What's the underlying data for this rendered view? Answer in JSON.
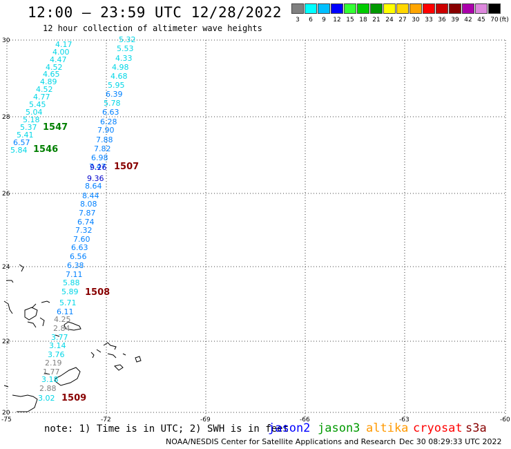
{
  "header": {
    "title": "12:00 – 23:59 UTC 12/28/2022",
    "subtitle": "12 hour collection of altimeter wave heights"
  },
  "legend": {
    "unit": "(ft)",
    "items": [
      {
        "label": "3",
        "color": "#808080"
      },
      {
        "label": "6",
        "color": "#00ffff"
      },
      {
        "label": "9",
        "color": "#00bfff"
      },
      {
        "label": "12",
        "color": "#0000ff"
      },
      {
        "label": "15",
        "color": "#33ff33"
      },
      {
        "label": "18",
        "color": "#00cc00"
      },
      {
        "label": "21",
        "color": "#009900"
      },
      {
        "label": "24",
        "color": "#ffff00"
      },
      {
        "label": "27",
        "color": "#ffd700"
      },
      {
        "label": "30",
        "color": "#ffa500"
      },
      {
        "label": "33",
        "color": "#ff0000"
      },
      {
        "label": "36",
        "color": "#cc0000"
      },
      {
        "label": "39",
        "color": "#880000"
      },
      {
        "label": "42",
        "color": "#aa00aa"
      },
      {
        "label": "45",
        "color": "#dd88dd"
      },
      {
        "label": "70",
        "color": "#000000"
      }
    ]
  },
  "map": {
    "lon_ticks": [
      "-75",
      "-72",
      "-69",
      "-66",
      "-63",
      "-60"
    ],
    "lat_ticks": [
      "30",
      "28",
      "26",
      "24",
      "22",
      "20"
    ],
    "colors": {
      "cyan": "#00d6e6",
      "blue": "#0080ff",
      "navy": "#0000cc",
      "gray": "#808080",
      "green": "#007f00",
      "darkred": "#880000"
    },
    "track_left": [
      {
        "text": "4.17",
        "c": "cyan"
      },
      {
        "text": "4.00",
        "c": "cyan"
      },
      {
        "text": "4.47",
        "c": "cyan"
      },
      {
        "text": "4.52",
        "c": "cyan"
      },
      {
        "text": "4.65",
        "c": "cyan"
      },
      {
        "text": "4.89",
        "c": "cyan"
      },
      {
        "text": "4.52",
        "c": "cyan"
      },
      {
        "text": "4.77",
        "c": "cyan"
      },
      {
        "text": "5.45",
        "c": "cyan"
      },
      {
        "text": "5.04",
        "c": "cyan"
      },
      {
        "text": "5.18",
        "c": "cyan"
      },
      {
        "text": "5.37",
        "c": "cyan"
      },
      {
        "text": "5.41",
        "c": "cyan"
      },
      {
        "text": "6.57",
        "c": "blue"
      },
      {
        "text": "5.84",
        "c": "cyan"
      }
    ],
    "track_right": [
      {
        "text": "5.32",
        "c": "cyan"
      },
      {
        "text": "5.53",
        "c": "cyan"
      },
      {
        "text": "4.33",
        "c": "cyan"
      },
      {
        "text": "4.98",
        "c": "cyan"
      },
      {
        "text": "4.68",
        "c": "cyan"
      },
      {
        "text": "5.95",
        "c": "cyan"
      },
      {
        "text": "6.39",
        "c": "blue"
      },
      {
        "text": "5.78",
        "c": "cyan"
      },
      {
        "text": "6.63",
        "c": "blue"
      },
      {
        "text": "6.28",
        "c": "blue"
      },
      {
        "text": "7.90",
        "c": "blue"
      },
      {
        "text": "7.88",
        "c": "blue"
      },
      {
        "text": "7.82",
        "c": "blue"
      },
      {
        "text": "6.98",
        "c": "blue"
      },
      {
        "text": "7.47",
        "c": "blue"
      },
      {
        "text": "9.26",
        "c": "navy"
      },
      {
        "text": "9.36",
        "c": "navy"
      },
      {
        "text": "8.64",
        "c": "blue"
      },
      {
        "text": "8.44",
        "c": "blue"
      },
      {
        "text": "8.08",
        "c": "blue"
      },
      {
        "text": "7.87",
        "c": "blue"
      },
      {
        "text": "6.74",
        "c": "blue"
      },
      {
        "text": "7.32",
        "c": "blue"
      },
      {
        "text": "7.60",
        "c": "blue"
      },
      {
        "text": "6.63",
        "c": "blue"
      },
      {
        "text": "6.56",
        "c": "blue"
      },
      {
        "text": "6.38",
        "c": "blue"
      },
      {
        "text": "7.11",
        "c": "blue"
      },
      {
        "text": "5.88",
        "c": "cyan"
      },
      {
        "text": "5.89",
        "c": "cyan"
      },
      {
        "text": "5.71",
        "c": "cyan"
      },
      {
        "text": "6.11",
        "c": "blue"
      },
      {
        "text": "4.25",
        "c": "gray"
      },
      {
        "text": "2.84",
        "c": "gray"
      },
      {
        "text": "3.77",
        "c": "cyan"
      },
      {
        "text": "3.14",
        "c": "cyan"
      },
      {
        "text": "3.76",
        "c": "cyan"
      },
      {
        "text": "2.19",
        "c": "gray"
      },
      {
        "text": "1.77",
        "c": "gray"
      },
      {
        "text": "3.18",
        "c": "cyan"
      },
      {
        "text": "2.88",
        "c": "gray"
      },
      {
        "text": "3.02",
        "c": "cyan"
      }
    ],
    "pass_labels": [
      {
        "text": "1547",
        "c": "green"
      },
      {
        "text": "1546",
        "c": "green"
      },
      {
        "text": "1507",
        "c": "darkred"
      },
      {
        "text": "1508",
        "c": "darkred"
      },
      {
        "text": "1509",
        "c": "darkred"
      }
    ]
  },
  "note": {
    "text": "note: 1) Time is in UTC; 2) SWH is in feet",
    "satellites": [
      {
        "name": "jason2",
        "color": "#0000ff"
      },
      {
        "name": "jason3",
        "color": "#009900"
      },
      {
        "name": "altika",
        "color": "#ff9900"
      },
      {
        "name": "cryosat",
        "color": "#ff0000"
      },
      {
        "name": "s3a",
        "color": "#880000"
      }
    ]
  },
  "footer": {
    "credit": "NOAA/NESDIS Center for Satellite Applications and Research",
    "timestamp": "Dec 30 08:29:33 UTC 2022"
  }
}
